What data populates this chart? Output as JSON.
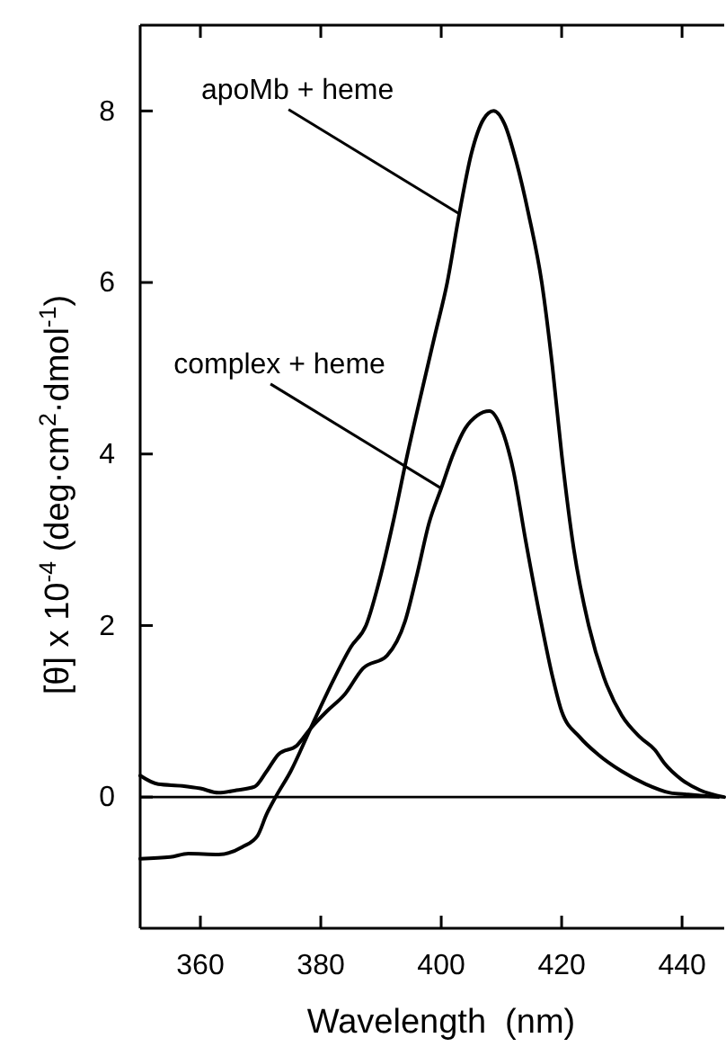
{
  "chart_data": {
    "type": "line",
    "xlabel": "Wavelength  (nm)",
    "ylabel": "[θ] x 10$^{-4}$ (deg·cm$^{2}$·dmol$^{-1}$)",
    "xlim": [
      350,
      447
    ],
    "xticks": [
      360,
      380,
      400,
      420,
      440
    ],
    "ylim": [
      -1.53,
      9
    ],
    "yticks": [
      0,
      2,
      4,
      6,
      8
    ],
    "grid": false,
    "ref_lines": [
      {
        "axis": "y",
        "value": 0,
        "color": "#000000"
      }
    ],
    "series": [
      {
        "name": "apoMb + heme",
        "color": "#000000",
        "x": [
          350,
          355,
          358,
          363,
          367,
          369.5,
          371,
          372.5,
          375,
          378.3,
          382,
          385,
          387.5,
          390,
          392,
          394.4,
          397,
          399,
          401,
          403,
          405,
          407,
          408.7,
          410.5,
          412.5,
          414.5,
          416.7,
          418.5,
          420,
          422,
          424.5,
          427,
          430,
          433,
          435.5,
          437,
          440,
          443,
          447
        ],
        "values": [
          -0.72,
          -0.7,
          -0.66,
          -0.67,
          -0.58,
          -0.45,
          -0.2,
          0,
          0.3,
          0.8,
          1.35,
          1.75,
          2.0,
          2.6,
          3.2,
          4.0,
          4.8,
          5.4,
          6.0,
          6.8,
          7.5,
          7.9,
          8.0,
          7.85,
          7.4,
          6.8,
          6.0,
          5.0,
          4.0,
          2.9,
          2.0,
          1.4,
          0.95,
          0.7,
          0.55,
          0.4,
          0.2,
          0.08,
          0.0
        ]
      },
      {
        "name": "complex + heme",
        "color": "#000000",
        "x": [
          350,
          353,
          357,
          360,
          363,
          366,
          369,
          371,
          373,
          376,
          378.3,
          381,
          384,
          387,
          391,
          394,
          396,
          398,
          400,
          402,
          404,
          406,
          408,
          410,
          412,
          414,
          416.7,
          418.5,
          420,
          423,
          426,
          430,
          434,
          438,
          441,
          446
        ],
        "values": [
          0.25,
          0.15,
          0.13,
          0.1,
          0.05,
          0.08,
          0.12,
          0.3,
          0.5,
          0.6,
          0.8,
          1.0,
          1.2,
          1.5,
          1.65,
          2.05,
          2.6,
          3.2,
          3.6,
          4.0,
          4.3,
          4.45,
          4.5,
          4.3,
          3.8,
          3.0,
          2.0,
          1.4,
          1.0,
          0.7,
          0.5,
          0.3,
          0.15,
          0.05,
          0.03,
          0.0
        ]
      }
    ]
  }
}
